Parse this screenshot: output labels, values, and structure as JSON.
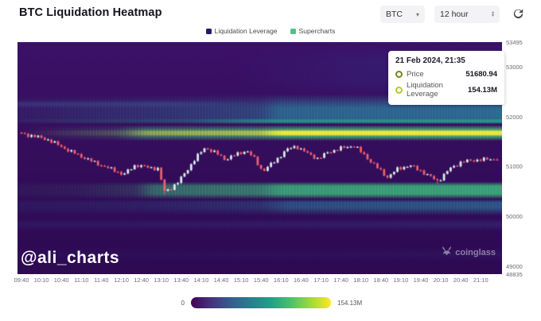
{
  "header": {
    "title": "BTC Liquidation Heatmap",
    "symbol_select": {
      "value": "BTC"
    },
    "interval_select": {
      "value": "12 hour"
    }
  },
  "legend": {
    "items": [
      {
        "label": "Liquidation Leverage",
        "color": "#241c63"
      },
      {
        "label": "Supercharts",
        "color": "#55c188"
      }
    ]
  },
  "tooltip": {
    "timestamp": "21 Feb 2024, 21:35",
    "rows": [
      {
        "label": "Price",
        "value": "51680.94",
        "marker_color": "#7b7f23"
      },
      {
        "label": "Liquidation Leverage",
        "value": "154.13M",
        "marker_color": "#b9c72c"
      }
    ]
  },
  "watermark": "@ali_charts",
  "brand": {
    "name": "coinglass"
  },
  "colorbar": {
    "min_label": "0",
    "max_label": "154.13M",
    "gradient": [
      "#440154",
      "#46327e",
      "#365c8d",
      "#277f8e",
      "#1fa187",
      "#4ac16d",
      "#a0da39",
      "#fde725"
    ]
  },
  "chart_data": {
    "type": "heatmap",
    "title": "BTC Liquidation Heatmap",
    "subtitle": "liquidation leverage heatmap with BTC price candlesticks overlaid",
    "y_axis": {
      "label": "price",
      "min": 48835,
      "max": 53495,
      "ticks": [
        53495,
        53000,
        52000,
        51000,
        50000,
        49000,
        48835
      ]
    },
    "x_axis": {
      "label": "time",
      "ticks": [
        "09:40",
        "10:10",
        "10:40",
        "11:10",
        "11:40",
        "12:10",
        "12:40",
        "13:10",
        "13:40",
        "14:10",
        "14:40",
        "15:10",
        "15:40",
        "16:10",
        "16:40",
        "17:10",
        "17:40",
        "18:10",
        "18:40",
        "19:10",
        "19:40",
        "20:10",
        "20:40",
        "21:10"
      ]
    },
    "legend_position": "top-center",
    "grid": false,
    "leverage_scale": {
      "min": 0,
      "max": 154130000,
      "max_label": "154.13M"
    },
    "highlighted_point": {
      "time": "21:35",
      "price": 51680.94,
      "liquidation_leverage": "154.13M"
    },
    "colors": {
      "background_top": "#3c1168",
      "background_mid": "#340d5b",
      "background_bottom": "#2d0a52",
      "candle_up": "#dcefe7",
      "candle_down": "#ef5f6d"
    },
    "heatmap_bands": [
      {
        "name": "top-navy-tint",
        "p": [
          53495,
          52380
        ],
        "color": "#2b3c8a",
        "fade": [
          0.35,
          0.3
        ],
        "stops": [
          [
            0,
            0
          ],
          [
            0.45,
            0
          ],
          [
            0.72,
            0.2
          ],
          [
            1,
            0.28
          ]
        ]
      },
      {
        "name": "left-blue-streak",
        "p": [
          52330,
          52170
        ],
        "color": "#4a72b8",
        "fade": [
          0.4,
          0.4
        ],
        "stops": [
          [
            0,
            0.22
          ],
          [
            0.3,
            0.24
          ],
          [
            0.48,
            0.05
          ],
          [
            0.6,
            0
          ]
        ]
      },
      {
        "name": "upper-teal-band",
        "p": [
          52450,
          51880
        ],
        "color": "#2c809e",
        "fade": [
          0.55,
          0.18
        ],
        "stops": [
          [
            0,
            0.1
          ],
          [
            0.3,
            0.28
          ],
          [
            0.5,
            0.42
          ],
          [
            0.54,
            0.7
          ],
          [
            1,
            0.78
          ]
        ]
      },
      {
        "name": "teal-stripe",
        "p": [
          51970,
          51850
        ],
        "color": "#27a392",
        "fade": [
          0.35,
          0.3
        ],
        "stops": [
          [
            0,
            0.08
          ],
          [
            0.35,
            0.3
          ],
          [
            0.54,
            0.78
          ],
          [
            1,
            0.85
          ]
        ]
      },
      {
        "name": "green-band-upper",
        "p": [
          51830,
          51510
        ],
        "color": "#49bf77",
        "fade": [
          0.3,
          0.3
        ],
        "stops": [
          [
            0,
            0
          ],
          [
            0.2,
            0.18
          ],
          [
            0.26,
            0.48
          ],
          [
            0.5,
            0.62
          ],
          [
            0.55,
            0.8
          ],
          [
            1,
            0.85
          ]
        ]
      },
      {
        "name": "yellow-band",
        "p": [
          51735,
          51605
        ],
        "color": "#eee73c",
        "fade": [
          0.28,
          0.28
        ],
        "stops": [
          [
            0,
            0
          ],
          [
            0.22,
            0.15
          ],
          [
            0.27,
            0.4
          ],
          [
            0.5,
            0.55
          ],
          [
            0.545,
            1
          ],
          [
            1,
            1
          ]
        ]
      },
      {
        "name": "mid-green-band",
        "p": [
          50690,
          50340
        ],
        "color": "#3db77d",
        "fade": [
          0.25,
          0.3
        ],
        "stops": [
          [
            0,
            0.05
          ],
          [
            0.12,
            0.08
          ],
          [
            0.24,
            0.18
          ],
          [
            0.28,
            0.48
          ],
          [
            0.5,
            0.58
          ],
          [
            0.545,
            0.8
          ],
          [
            1,
            0.85
          ]
        ]
      },
      {
        "name": "teal-tail",
        "p": [
          50340,
          50010
        ],
        "color": "#2c7f9e",
        "fade": [
          0.2,
          0.75
        ],
        "stops": [
          [
            0,
            0.08
          ],
          [
            0.25,
            0.14
          ],
          [
            0.5,
            0.28
          ],
          [
            0.56,
            0.52
          ],
          [
            1,
            0.6
          ]
        ]
      },
      {
        "name": "faint-blue-band",
        "p": [
          49960,
          49700
        ],
        "color": "#3f61aa",
        "fade": [
          0.45,
          0.45
        ],
        "stops": [
          [
            0,
            0.1
          ],
          [
            0.5,
            0.15
          ],
          [
            1,
            0.2
          ]
        ]
      },
      {
        "name": "deep-faint-band",
        "p": [
          49380,
          49080
        ],
        "color": "#394684",
        "fade": [
          0.5,
          0.5
        ],
        "stops": [
          [
            0,
            0.06
          ],
          [
            0.5,
            0.09
          ],
          [
            1,
            0.14
          ]
        ]
      }
    ],
    "candles": {
      "interval_minutes": 5,
      "start": "09:40",
      "end": "21:35",
      "count": 144,
      "price_keypoints": [
        [
          0.0,
          51650
        ],
        [
          0.02,
          51620
        ],
        [
          0.055,
          51540
        ],
        [
          0.105,
          51290
        ],
        [
          0.155,
          51070
        ],
        [
          0.2,
          50900
        ],
        [
          0.214,
          50830
        ],
        [
          0.24,
          51030
        ],
        [
          0.265,
          50980
        ],
        [
          0.29,
          50950
        ],
        [
          0.298,
          50480
        ],
        [
          0.314,
          50560
        ],
        [
          0.331,
          50700
        ],
        [
          0.365,
          51150
        ],
        [
          0.386,
          51380
        ],
        [
          0.415,
          51230
        ],
        [
          0.428,
          51140
        ],
        [
          0.457,
          51260
        ],
        [
          0.473,
          51320
        ],
        [
          0.49,
          51150
        ],
        [
          0.507,
          50900
        ],
        [
          0.532,
          51100
        ],
        [
          0.557,
          51330
        ],
        [
          0.577,
          51410
        ],
        [
          0.599,
          51270
        ],
        [
          0.624,
          51150
        ],
        [
          0.644,
          51280
        ],
        [
          0.666,
          51350
        ],
        [
          0.699,
          51420
        ],
        [
          0.732,
          51120
        ],
        [
          0.769,
          50780
        ],
        [
          0.791,
          50950
        ],
        [
          0.816,
          51020
        ],
        [
          0.841,
          50900
        ],
        [
          0.875,
          50700
        ],
        [
          0.9,
          50950
        ],
        [
          0.925,
          51090
        ],
        [
          0.958,
          51130
        ],
        [
          1.0,
          51150
        ]
      ]
    }
  }
}
